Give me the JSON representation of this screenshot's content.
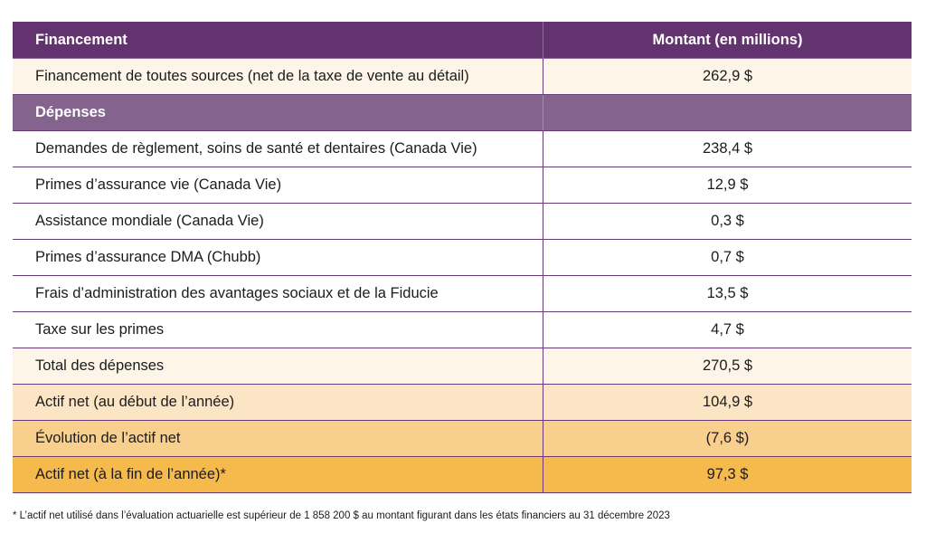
{
  "table": {
    "header": {
      "label": "Financement",
      "value": "Montant (en millions)"
    },
    "funding_row": {
      "label": "Financement de toutes sources (net de la taxe de vente au détail)",
      "value": "262,9 $"
    },
    "section": {
      "label": "Dépenses",
      "value": ""
    },
    "expense_rows": [
      {
        "label": "Demandes de règlement, soins de santé et dentaires (Canada Vie)",
        "value": "238,4 $"
      },
      {
        "label": "Primes d’assurance vie (Canada Vie)",
        "value": "12,9 $"
      },
      {
        "label": "Assistance mondiale (Canada Vie)",
        "value": "0,3 $"
      },
      {
        "label": "Primes d’assurance DMA (Chubb)",
        "value": "0,7 $"
      },
      {
        "label": "Frais d’administration des avantages sociaux et de la Fiducie",
        "value": "13,5 $"
      },
      {
        "label": "Taxe sur les primes",
        "value": "4,7 $"
      }
    ],
    "summary_rows": [
      {
        "label": "Total des dépenses",
        "value": "270,5 $"
      },
      {
        "label": "Actif net (au début de l’année)",
        "value": "104,9 $"
      },
      {
        "label": "Évolution de l’actif net",
        "value": "(7,6 $)"
      },
      {
        "label": "Actif net (à la fin de l’année)*",
        "value": "97,3 $"
      }
    ]
  },
  "footnote": "* L’actif net utilisé dans l’évaluation actuarielle est supérieur de 1 858 200 $ au montant figurant dans les états financiers au 31 décembre 2023",
  "colors": {
    "header_bg": "#62336f",
    "section_bg": "#84648f",
    "row_cream": "#fdf6e8",
    "row_peach_light": "#fbe5c4",
    "row_peach_mid": "#f8cf8c",
    "row_peach_dark": "#f5b94c",
    "divider": "#6a3a78"
  }
}
